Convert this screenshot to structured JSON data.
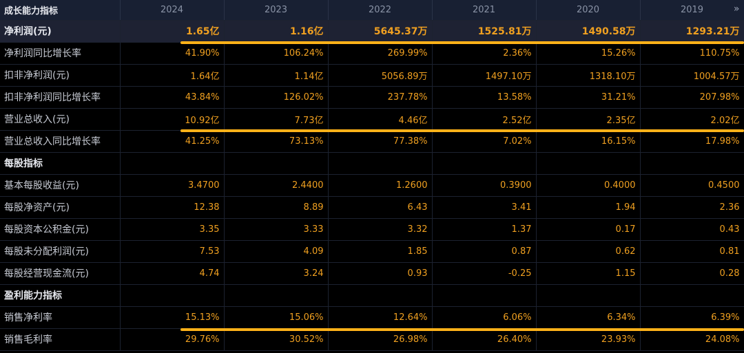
{
  "header": {
    "title": "成长能力指标",
    "years": [
      "2024",
      "2023",
      "2022",
      "2021",
      "2020",
      "2019"
    ],
    "next_icon": "double-chevron-right-icon"
  },
  "rows": [
    {
      "label": "净利润(元)",
      "values": [
        "1.65亿",
        "1.16亿",
        "5645.37万",
        "1525.81万",
        "1490.58万",
        "1293.21万"
      ]
    },
    {
      "label": "净利润同比增长率",
      "values": [
        "41.90%",
        "106.24%",
        "269.99%",
        "2.36%",
        "15.26%",
        "110.75%"
      ]
    },
    {
      "label": "扣非净利润(元)",
      "values": [
        "1.64亿",
        "1.14亿",
        "5056.89万",
        "1497.10万",
        "1318.10万",
        "1004.57万"
      ]
    },
    {
      "label": "扣非净利润同比增长率",
      "values": [
        "43.84%",
        "126.02%",
        "237.78%",
        "13.58%",
        "31.21%",
        "207.98%"
      ]
    },
    {
      "label": "营业总收入(元)",
      "values": [
        "10.92亿",
        "7.73亿",
        "4.46亿",
        "2.52亿",
        "2.35亿",
        "2.02亿"
      ]
    },
    {
      "label": "营业总收入同比增长率",
      "values": [
        "41.25%",
        "73.13%",
        "77.38%",
        "7.02%",
        "16.15%",
        "17.98%"
      ]
    },
    {
      "label": "每股指标",
      "values": [
        "",
        "",
        "",
        "",
        "",
        ""
      ]
    },
    {
      "label": "基本每股收益(元)",
      "values": [
        "3.4700",
        "2.4400",
        "1.2600",
        "0.3900",
        "0.4000",
        "0.4500"
      ]
    },
    {
      "label": "每股净资产(元)",
      "values": [
        "12.38",
        "8.89",
        "6.43",
        "3.41",
        "1.94",
        "2.36"
      ]
    },
    {
      "label": "每股资本公积金(元)",
      "values": [
        "3.35",
        "3.33",
        "3.32",
        "1.37",
        "0.17",
        "0.43"
      ]
    },
    {
      "label": "每股未分配利润(元)",
      "values": [
        "7.53",
        "4.09",
        "1.85",
        "0.87",
        "0.62",
        "0.81"
      ]
    },
    {
      "label": "每股经营现金流(元)",
      "values": [
        "4.74",
        "3.24",
        "0.93",
        "-0.25",
        "1.15",
        "0.28"
      ]
    },
    {
      "label": "盈利能力指标",
      "values": [
        "",
        "",
        "",
        "",
        "",
        ""
      ]
    },
    {
      "label": "销售净利率",
      "values": [
        "15.13%",
        "15.06%",
        "12.64%",
        "6.06%",
        "6.34%",
        "6.39%"
      ]
    },
    {
      "label": "销售毛利率",
      "values": [
        "29.76%",
        "30.52%",
        "26.98%",
        "26.40%",
        "23.93%",
        "24.08%"
      ]
    }
  ],
  "colors": {
    "value": "#f0a020",
    "underline": "#ffb219",
    "header_bg": "#182033"
  }
}
